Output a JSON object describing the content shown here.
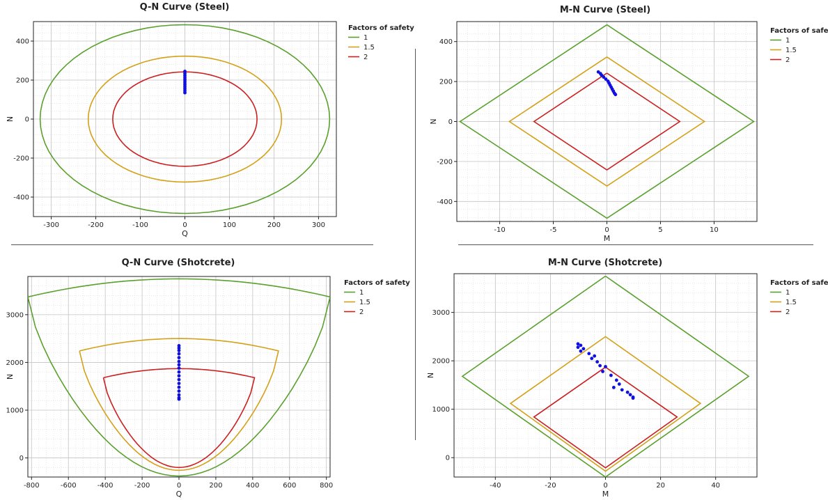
{
  "legend_title": "Factors of safety",
  "colors": {
    "fs1": "#5aa02c",
    "fs15": "#d4a017",
    "fs2": "#cc1f1f",
    "points": "#1010e0"
  },
  "chart_data": [
    {
      "type": "line",
      "title": "Q-N Curve (Steel)",
      "xlabel": "Q",
      "ylabel": "N",
      "xlim": [
        -340,
        340
      ],
      "ylim": [
        -500,
        500
      ],
      "xticks": [
        -300,
        -200,
        -100,
        0,
        100,
        200,
        300
      ],
      "yticks": [
        -400,
        -200,
        0,
        200,
        400
      ],
      "grid": true,
      "legend": "right",
      "series": [
        {
          "name": "1",
          "curve": "ellipse",
          "q": 325,
          "n": 484
        },
        {
          "name": "1.5",
          "curve": "ellipse",
          "q": 217,
          "n": 323
        },
        {
          "name": "2",
          "curve": "ellipse",
          "q": 162,
          "n": 242
        }
      ],
      "points": [
        [
          0,
          245
        ],
        [
          0,
          235
        ],
        [
          0,
          225
        ],
        [
          0,
          215
        ],
        [
          0,
          205
        ],
        [
          0,
          195
        ],
        [
          0,
          185
        ],
        [
          0,
          175
        ],
        [
          0,
          165
        ],
        [
          0,
          155
        ],
        [
          0,
          145
        ],
        [
          0,
          135
        ]
      ]
    },
    {
      "type": "line",
      "title": "M-N Curve (Steel)",
      "xlabel": "M",
      "ylabel": "N",
      "xlim": [
        -14,
        14
      ],
      "ylim": [
        -500,
        500
      ],
      "xticks": [
        -10,
        -5,
        0,
        5,
        10
      ],
      "yticks": [
        -400,
        -200,
        0,
        200,
        400
      ],
      "grid": true,
      "legend": "right",
      "series": [
        {
          "name": "1",
          "x": [
            0,
            13.7,
            0,
            -13.7,
            0
          ],
          "y": [
            484,
            0,
            -484,
            0,
            484
          ]
        },
        {
          "name": "1.5",
          "x": [
            0,
            9.1,
            0,
            -9.1,
            0
          ],
          "y": [
            323,
            0,
            -323,
            0,
            323
          ]
        },
        {
          "name": "2",
          "x": [
            0,
            6.8,
            0,
            -6.8,
            0
          ],
          "y": [
            242,
            0,
            -242,
            0,
            242
          ]
        }
      ],
      "points": [
        [
          -0.8,
          248
        ],
        [
          -0.6,
          240
        ],
        [
          -0.5,
          232
        ],
        [
          -0.3,
          222
        ],
        [
          -0.1,
          212
        ],
        [
          0.1,
          202
        ],
        [
          0.2,
          192
        ],
        [
          0.3,
          182
        ],
        [
          0.4,
          172
        ],
        [
          0.5,
          162
        ],
        [
          0.6,
          152
        ],
        [
          0.7,
          142
        ],
        [
          0.8,
          135
        ]
      ]
    },
    {
      "type": "line",
      "title": "Q-N Curve (Shotcrete)",
      "xlabel": "Q",
      "ylabel": "N",
      "xlim": [
        -820,
        820
      ],
      "ylim": [
        -400,
        3800
      ],
      "xticks": [
        -800,
        -600,
        -400,
        -200,
        0,
        200,
        400,
        600,
        800
      ],
      "yticks": [
        0,
        1000,
        2000,
        3000
      ],
      "grid": true,
      "legend": "right",
      "series": [
        {
          "name": "1",
          "curve": "bowl",
          "xe": 820,
          "ytop": 3750,
          "yedge": 3370,
          "ybot": -380
        },
        {
          "name": "1.5",
          "curve": "bowl",
          "xe": 540,
          "ytop": 2500,
          "yedge": 2240,
          "ybot": -260
        },
        {
          "name": "2",
          "curve": "bowl",
          "xe": 410,
          "ytop": 1870,
          "yedge": 1680,
          "ybot": -200
        }
      ],
      "points": [
        [
          0,
          2350
        ],
        [
          0,
          2300
        ],
        [
          0,
          2250
        ],
        [
          0,
          2180
        ],
        [
          0,
          2100
        ],
        [
          0,
          2020
        ],
        [
          0,
          1950
        ],
        [
          0,
          1880
        ],
        [
          0,
          1800
        ],
        [
          0,
          1720
        ],
        [
          0,
          1640
        ],
        [
          0,
          1560
        ],
        [
          0,
          1480
        ],
        [
          0,
          1400
        ],
        [
          0,
          1320
        ],
        [
          0,
          1260
        ],
        [
          0,
          1230
        ]
      ]
    },
    {
      "type": "line",
      "title": "M-N Curve (Shotcrete)",
      "xlabel": "M",
      "ylabel": "N",
      "xlim": [
        -55,
        55
      ],
      "ylim": [
        -400,
        3800
      ],
      "xticks": [
        -40,
        -20,
        0,
        20,
        40
      ],
      "yticks": [
        0,
        1000,
        2000,
        3000
      ],
      "grid": true,
      "legend": "right",
      "series": [
        {
          "name": "1",
          "x": [
            0,
            52,
            0,
            -52,
            0
          ],
          "y": [
            3750,
            1680,
            -400,
            1680,
            3750
          ]
        },
        {
          "name": "1.5",
          "x": [
            0,
            34.5,
            0,
            -34.5,
            0
          ],
          "y": [
            2500,
            1120,
            -280,
            1120,
            2500
          ]
        },
        {
          "name": "2",
          "x": [
            0,
            26,
            0,
            -26,
            0
          ],
          "y": [
            1870,
            840,
            -210,
            840,
            1870
          ]
        }
      ],
      "points": [
        [
          -10,
          2350
        ],
        [
          -9,
          2320
        ],
        [
          -10,
          2280
        ],
        [
          -8,
          2250
        ],
        [
          -9,
          2200
        ],
        [
          -6,
          2150
        ],
        [
          -4,
          2100
        ],
        [
          -5,
          2050
        ],
        [
          -3,
          1980
        ],
        [
          -2,
          1900
        ],
        [
          0,
          1880
        ],
        [
          -1,
          1780
        ],
        [
          2,
          1700
        ],
        [
          4,
          1600
        ],
        [
          5,
          1520
        ],
        [
          3,
          1450
        ],
        [
          6,
          1400
        ],
        [
          8,
          1350
        ],
        [
          9,
          1300
        ],
        [
          10,
          1250
        ],
        [
          10,
          1230
        ]
      ]
    }
  ]
}
